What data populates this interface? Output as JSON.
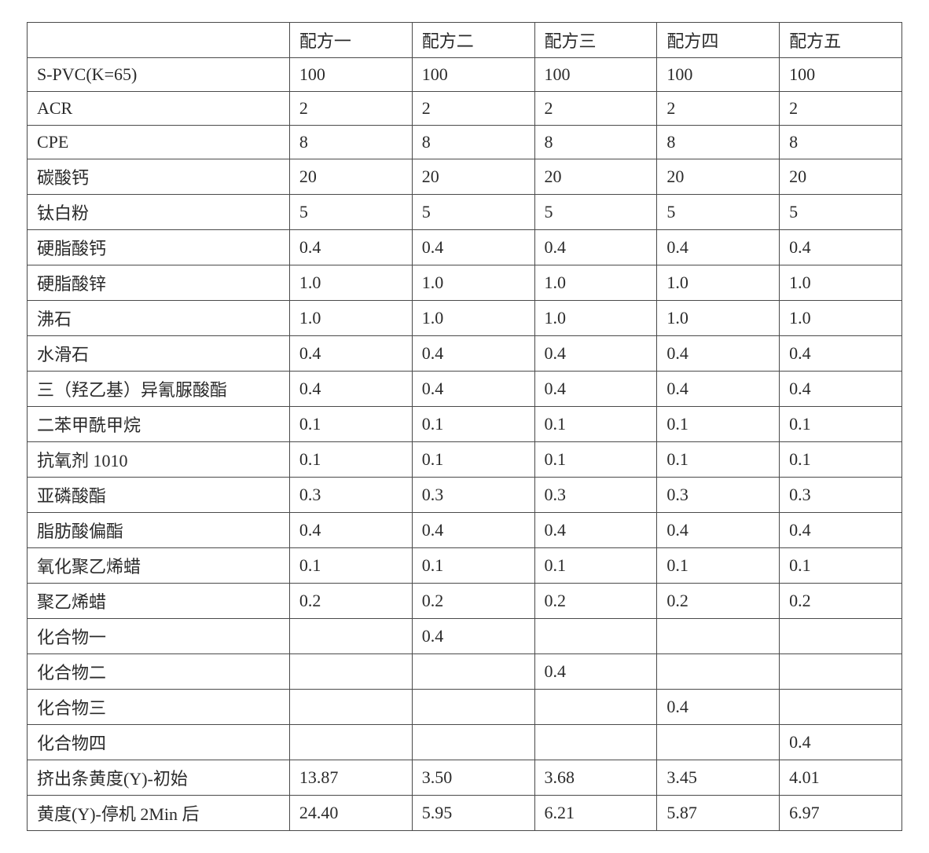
{
  "table": {
    "columns": [
      "",
      "配方一",
      "配方二",
      "配方三",
      "配方四",
      "配方五"
    ],
    "col_widths_pct": [
      30,
      14,
      14,
      14,
      14,
      14
    ],
    "rows": [
      [
        "S-PVC(K=65)",
        "100",
        "100",
        "100",
        "100",
        "100"
      ],
      [
        "ACR",
        "2",
        "2",
        "2",
        "2",
        "2"
      ],
      [
        "CPE",
        "8",
        "8",
        "8",
        "8",
        "8"
      ],
      [
        "碳酸钙",
        "20",
        "20",
        "20",
        "20",
        "20"
      ],
      [
        "钛白粉",
        "5",
        "5",
        "5",
        "5",
        "5"
      ],
      [
        "硬脂酸钙",
        "0.4",
        "0.4",
        "0.4",
        "0.4",
        "0.4"
      ],
      [
        "硬脂酸锌",
        "1.0",
        "1.0",
        "1.0",
        "1.0",
        "1.0"
      ],
      [
        "沸石",
        "1.0",
        "1.0",
        "1.0",
        "1.0",
        "1.0"
      ],
      [
        "水滑石",
        "0.4",
        "0.4",
        "0.4",
        "0.4",
        "0.4"
      ],
      [
        "三（羟乙基）异氰脲酸酯",
        "0.4",
        "0.4",
        "0.4",
        "0.4",
        "0.4"
      ],
      [
        "二苯甲酰甲烷",
        "0.1",
        "0.1",
        "0.1",
        "0.1",
        "0.1"
      ],
      [
        "抗氧剂 1010",
        "0.1",
        "0.1",
        "0.1",
        "0.1",
        "0.1"
      ],
      [
        "亚磷酸酯",
        "0.3",
        "0.3",
        "0.3",
        "0.3",
        "0.3"
      ],
      [
        "脂肪酸偏酯",
        "0.4",
        "0.4",
        "0.4",
        "0.4",
        "0.4"
      ],
      [
        "氧化聚乙烯蜡",
        "0.1",
        "0.1",
        "0.1",
        "0.1",
        "0.1"
      ],
      [
        "聚乙烯蜡",
        "0.2",
        "0.2",
        "0.2",
        "0.2",
        "0.2"
      ],
      [
        "化合物一",
        "",
        "0.4",
        "",
        "",
        ""
      ],
      [
        "化合物二",
        "",
        "",
        "0.4",
        "",
        ""
      ],
      [
        "化合物三",
        "",
        "",
        "",
        "0.4",
        ""
      ],
      [
        "化合物四",
        "",
        "",
        "",
        "",
        "0.4"
      ],
      [
        "挤出条黄度(Y)-初始",
        "13.87",
        "3.50",
        "3.68",
        "3.45",
        "4.01"
      ],
      [
        "黄度(Y)-停机 2Min 后",
        "24.40",
        "5.95",
        "6.21",
        "5.87",
        "6.97"
      ]
    ],
    "border_color": "#4a4a4a",
    "text_color": "#2a2a2a",
    "background_color": "#ffffff",
    "font_size_pt": 16
  }
}
